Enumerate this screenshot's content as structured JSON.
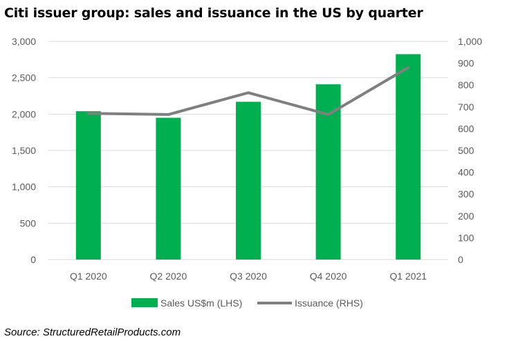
{
  "title": "Citi issuer group: sales and issuance in the US by quarter",
  "source": "Source: StructuredRetailProducts.com",
  "chart_data": {
    "type": "bar",
    "title": "Citi issuer group: sales and issuance in the US by quarter",
    "categories": [
      "Q1 2020",
      "Q2 2020",
      "Q3 2020",
      "Q4 2020",
      "Q1 2021"
    ],
    "series": [
      {
        "name": "Sales US$m (LHS)",
        "type": "bar",
        "axis": "left",
        "color": "#00b050",
        "values": [
          2040,
          1950,
          2170,
          2410,
          2825
        ]
      },
      {
        "name": "Issuance (RHS)",
        "type": "line",
        "axis": "right",
        "color": "#7f7f7f",
        "values": [
          670,
          665,
          765,
          665,
          880
        ]
      }
    ],
    "y_left": {
      "ylim": [
        0,
        3000
      ],
      "ticks": [
        "0",
        "500",
        "1,000",
        "1,500",
        "2,000",
        "2,500",
        "3,000"
      ]
    },
    "y_right": {
      "ylim": [
        0,
        1000
      ],
      "ticks": [
        "0",
        "100",
        "200",
        "300",
        "400",
        "500",
        "600",
        "700",
        "800",
        "900",
        "1,000"
      ]
    },
    "grid": true,
    "legend": "bottom"
  }
}
